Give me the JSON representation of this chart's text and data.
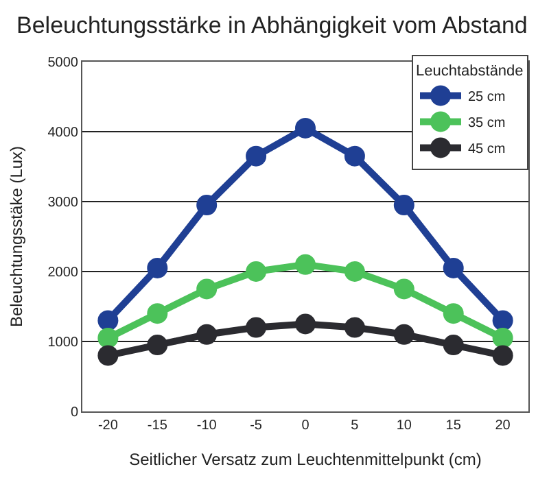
{
  "chart_data": {
    "type": "line",
    "title": "Beleuchtungsstärke in Abhängigkeit vom Abstand",
    "xlabel": "Seitlicher Versatz zum Leuchtenmittelpunkt (cm)",
    "ylabel": "Beleuchtungsstäke (Lux)",
    "legend_title": "Leuchtabstände",
    "legend": "top right",
    "x": [
      -20,
      -15,
      -10,
      -5,
      0,
      5,
      10,
      15,
      20
    ],
    "series": [
      {
        "name": "25 cm",
        "color": "#1f3f94",
        "values": [
          1300,
          2050,
          2950,
          3650,
          4050,
          3650,
          2950,
          2050,
          1300
        ]
      },
      {
        "name": "35 cm",
        "color": "#4cc25a",
        "values": [
          1050,
          1400,
          1750,
          2000,
          2100,
          2000,
          1750,
          1400,
          1050
        ]
      },
      {
        "name": "45 cm",
        "color": "#2b2b30",
        "values": [
          800,
          950,
          1100,
          1200,
          1250,
          1200,
          1100,
          950,
          800
        ]
      }
    ],
    "xlim": [
      -22.6,
      22.6
    ],
    "xticks": [
      -20,
      -15,
      -10,
      -5,
      0,
      5,
      10,
      15,
      20
    ],
    "ylim": [
      0,
      5000
    ],
    "yticks": [
      0,
      1000,
      2000,
      3000,
      4000,
      5000
    ],
    "grid": "y",
    "marker": "circle",
    "line_style": "solid"
  }
}
